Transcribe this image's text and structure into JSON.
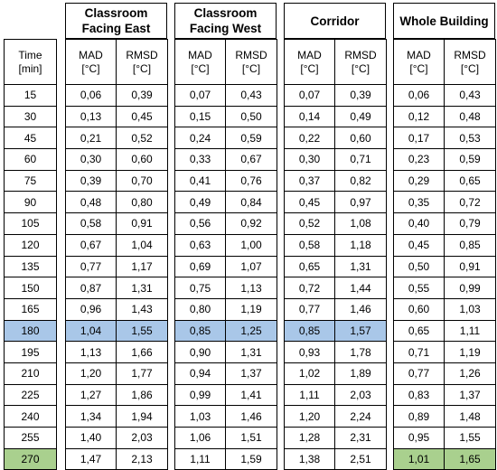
{
  "columns": {
    "time": "Time\n[min]",
    "mad": "MAD\n[°C]",
    "rmsd": "RMSD\n[°C]"
  },
  "groups": [
    {
      "title": "Classroom Facing East"
    },
    {
      "title": "Classroom Facing West"
    },
    {
      "title": "Corridor"
    },
    {
      "title": "Whole Building"
    }
  ],
  "rows": [
    {
      "time": "15",
      "v": [
        "0,06",
        "0,39",
        "0,07",
        "0,43",
        "0,07",
        "0,39",
        "0,06",
        "0,43"
      ]
    },
    {
      "time": "30",
      "v": [
        "0,13",
        "0,45",
        "0,15",
        "0,50",
        "0,14",
        "0,49",
        "0,12",
        "0,48"
      ]
    },
    {
      "time": "45",
      "v": [
        "0,21",
        "0,52",
        "0,24",
        "0,59",
        "0,22",
        "0,60",
        "0,17",
        "0,53"
      ]
    },
    {
      "time": "60",
      "v": [
        "0,30",
        "0,60",
        "0,33",
        "0,67",
        "0,30",
        "0,71",
        "0,23",
        "0,59"
      ]
    },
    {
      "time": "75",
      "v": [
        "0,39",
        "0,70",
        "0,41",
        "0,76",
        "0,37",
        "0,82",
        "0,29",
        "0,65"
      ]
    },
    {
      "time": "90",
      "v": [
        "0,48",
        "0,80",
        "0,49",
        "0,84",
        "0,45",
        "0,97",
        "0,35",
        "0,72"
      ]
    },
    {
      "time": "105",
      "v": [
        "0,58",
        "0,91",
        "0,56",
        "0,92",
        "0,52",
        "1,08",
        "0,40",
        "0,79"
      ]
    },
    {
      "time": "120",
      "v": [
        "0,67",
        "1,04",
        "0,63",
        "1,00",
        "0,58",
        "1,18",
        "0,45",
        "0,85"
      ]
    },
    {
      "time": "135",
      "v": [
        "0,77",
        "1,17",
        "0,69",
        "1,07",
        "0,65",
        "1,31",
        "0,50",
        "0,91"
      ]
    },
    {
      "time": "150",
      "v": [
        "0,87",
        "1,31",
        "0,75",
        "1,13",
        "0,72",
        "1,44",
        "0,55",
        "0,99"
      ]
    },
    {
      "time": "165",
      "v": [
        "0,96",
        "1,43",
        "0,80",
        "1,19",
        "0,77",
        "1,46",
        "0,60",
        "1,03"
      ]
    },
    {
      "time": "180",
      "v": [
        "1,04",
        "1,55",
        "0,85",
        "1,25",
        "0,85",
        "1,57",
        "0,65",
        "1,11"
      ]
    },
    {
      "time": "195",
      "v": [
        "1,13",
        "1,66",
        "0,90",
        "1,31",
        "0,93",
        "1,78",
        "0,71",
        "1,19"
      ]
    },
    {
      "time": "210",
      "v": [
        "1,20",
        "1,77",
        "0,94",
        "1,37",
        "1,02",
        "1,89",
        "0,77",
        "1,26"
      ]
    },
    {
      "time": "225",
      "v": [
        "1,27",
        "1,86",
        "0,99",
        "1,41",
        "1,11",
        "2,03",
        "0,83",
        "1,37"
      ]
    },
    {
      "time": "240",
      "v": [
        "1,34",
        "1,94",
        "1,03",
        "1,46",
        "1,20",
        "2,24",
        "0,89",
        "1,48"
      ]
    },
    {
      "time": "255",
      "v": [
        "1,40",
        "2,03",
        "1,06",
        "1,51",
        "1,28",
        "2,31",
        "0,95",
        "1,55"
      ]
    },
    {
      "time": "270",
      "v": [
        "1,47",
        "2,13",
        "1,11",
        "1,59",
        "1,38",
        "2,51",
        "1,01",
        "1,65"
      ]
    }
  ],
  "highlights": {
    "blue": "#a9c7e8",
    "green": "#a9d08e",
    "blue_row_time": "180",
    "blue_groups": [
      0,
      1,
      2
    ],
    "green_row_time": "270",
    "green_time_cell": true,
    "green_groups": [
      3
    ]
  }
}
